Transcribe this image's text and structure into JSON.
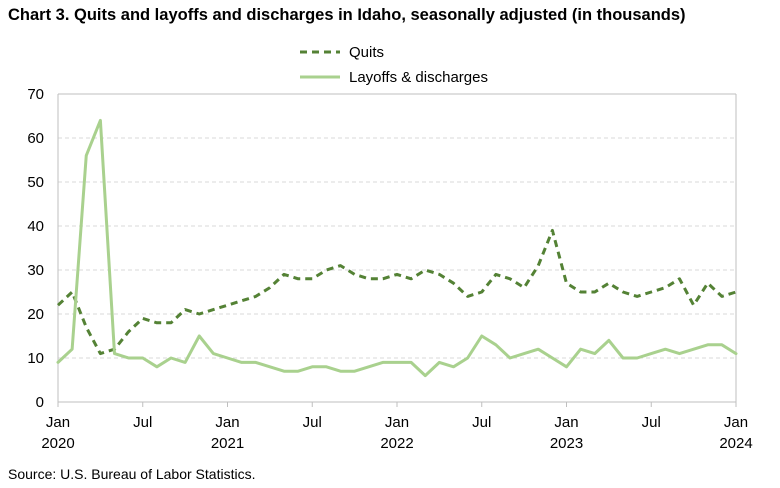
{
  "title": "Chart 3. Quits and layoffs and discharges in Idaho, seasonally adjusted (in thousands)",
  "source": "Source: U.S. Bureau of Labor Statistics.",
  "colors": {
    "quits": "#548235",
    "layoffs": "#a9d18e",
    "grid": "#d9d9d9",
    "axis": "#bfbfbf"
  },
  "chart_data": {
    "type": "line",
    "title": "Chart 3. Quits and layoffs and discharges in Idaho, seasonally adjusted (in thousands)",
    "xlabel": "",
    "ylabel": "",
    "ylim": [
      0,
      70
    ],
    "yticks": [
      "0",
      "10",
      "20",
      "30",
      "40",
      "50",
      "60",
      "70"
    ],
    "grid": "horizontal dashed",
    "legend_position": "top-center",
    "x": [
      "2020-01",
      "2020-02",
      "2020-03",
      "2020-04",
      "2020-05",
      "2020-06",
      "2020-07",
      "2020-08",
      "2020-09",
      "2020-10",
      "2020-11",
      "2020-12",
      "2021-01",
      "2021-02",
      "2021-03",
      "2021-04",
      "2021-05",
      "2021-06",
      "2021-07",
      "2021-08",
      "2021-09",
      "2021-10",
      "2021-11",
      "2021-12",
      "2022-01",
      "2022-02",
      "2022-03",
      "2022-04",
      "2022-05",
      "2022-06",
      "2022-07",
      "2022-08",
      "2022-09",
      "2022-10",
      "2022-11",
      "2022-12",
      "2023-01",
      "2023-02",
      "2023-03",
      "2023-04",
      "2023-05",
      "2023-06",
      "2023-07",
      "2023-08",
      "2023-09",
      "2023-10",
      "2023-11",
      "2023-12",
      "2024-01"
    ],
    "xtick_labels": [
      {
        "label": "Jan",
        "year": "2020"
      },
      {
        "label": "Jul",
        "year": ""
      },
      {
        "label": "Jan",
        "year": "2021"
      },
      {
        "label": "Jul",
        "year": ""
      },
      {
        "label": "Jan",
        "year": "2022"
      },
      {
        "label": "Jul",
        "year": ""
      },
      {
        "label": "Jan",
        "year": "2023"
      },
      {
        "label": "Jul",
        "year": ""
      },
      {
        "label": "Jan",
        "year": "2024"
      }
    ],
    "series": [
      {
        "name": "Quits",
        "style": "dashed",
        "values": [
          22,
          25,
          17,
          11,
          12,
          16,
          19,
          18,
          18,
          21,
          20,
          21,
          22,
          23,
          24,
          26,
          29,
          28,
          28,
          30,
          31,
          29,
          28,
          28,
          29,
          28,
          30,
          29,
          27,
          24,
          25,
          29,
          28,
          26,
          31,
          39,
          27,
          25,
          25,
          27,
          25,
          24,
          25,
          26,
          28,
          22,
          27,
          24,
          25
        ]
      },
      {
        "name": "Layoffs & discharges",
        "style": "solid",
        "values": [
          9,
          12,
          56,
          64,
          11,
          10,
          10,
          8,
          10,
          9,
          15,
          11,
          10,
          9,
          9,
          8,
          7,
          7,
          8,
          8,
          7,
          7,
          8,
          9,
          9,
          9,
          6,
          9,
          8,
          10,
          15,
          13,
          10,
          11,
          12,
          10,
          8,
          12,
          11,
          14,
          10,
          10,
          11,
          12,
          11,
          12,
          13,
          13,
          11
        ]
      }
    ]
  }
}
